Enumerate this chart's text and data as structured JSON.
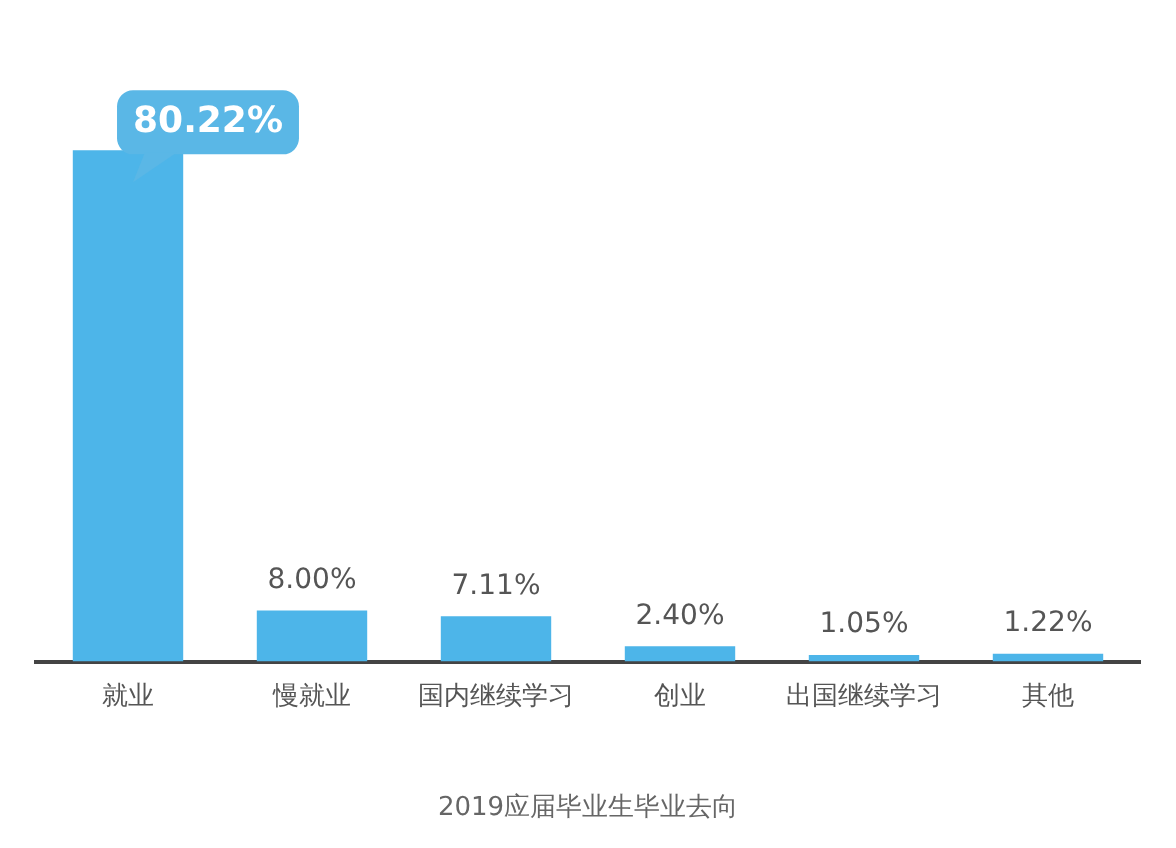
{
  "chart_data": {
    "type": "bar",
    "xlabel": "2019应届毕业生毕业去向",
    "categories": [
      "就业",
      "慢就业",
      "国内继续学习",
      "创业",
      "出国继续学习",
      "其他"
    ],
    "values": [
      80.22,
      8.0,
      7.11,
      2.4,
      1.05,
      1.22
    ],
    "value_labels": [
      "80.22%",
      "8.00%",
      "7.11%",
      "2.40%",
      "1.05%",
      "1.22%"
    ],
    "color": "#4db5e9",
    "grid": false,
    "legend": false
  }
}
